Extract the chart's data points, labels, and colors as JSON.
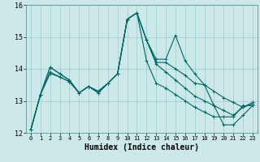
{
  "xlabel": "Humidex (Indice chaleur)",
  "xlim": [
    -0.5,
    23.5
  ],
  "ylim": [
    12,
    16
  ],
  "yticks": [
    12,
    13,
    14,
    15,
    16
  ],
  "xticks": [
    0,
    1,
    2,
    3,
    4,
    5,
    6,
    7,
    8,
    9,
    10,
    11,
    12,
    13,
    14,
    15,
    16,
    17,
    18,
    19,
    20,
    21,
    22,
    23
  ],
  "bg_color": "#cce8e8",
  "grid_color": "#99cccc",
  "line_color": "#006666",
  "series": [
    [
      12.1,
      13.2,
      14.05,
      13.85,
      13.65,
      13.25,
      13.45,
      13.25,
      13.55,
      13.85,
      15.55,
      15.75,
      14.9,
      14.15,
      13.9,
      13.65,
      13.4,
      13.15,
      13.0,
      12.85,
      12.7,
      12.55,
      12.8,
      12.9
    ],
    [
      12.1,
      13.2,
      13.85,
      13.75,
      13.6,
      13.25,
      13.45,
      13.3,
      13.55,
      13.85,
      15.55,
      15.75,
      14.25,
      13.55,
      13.4,
      13.2,
      13.0,
      12.8,
      12.65,
      12.5,
      12.5,
      12.5,
      12.85,
      12.85
    ],
    [
      12.1,
      13.2,
      13.9,
      13.75,
      13.6,
      13.25,
      13.45,
      13.3,
      13.55,
      13.85,
      15.55,
      15.75,
      14.9,
      14.2,
      14.2,
      14.0,
      13.8,
      13.55,
      13.5,
      13.3,
      13.1,
      12.95,
      12.8,
      12.95
    ],
    [
      12.1,
      13.2,
      14.05,
      13.85,
      13.65,
      13.25,
      13.45,
      13.25,
      13.55,
      13.85,
      15.55,
      15.75,
      14.9,
      14.3,
      14.3,
      15.05,
      14.25,
      13.85,
      13.5,
      12.85,
      12.25,
      12.25,
      12.55,
      12.85
    ]
  ]
}
